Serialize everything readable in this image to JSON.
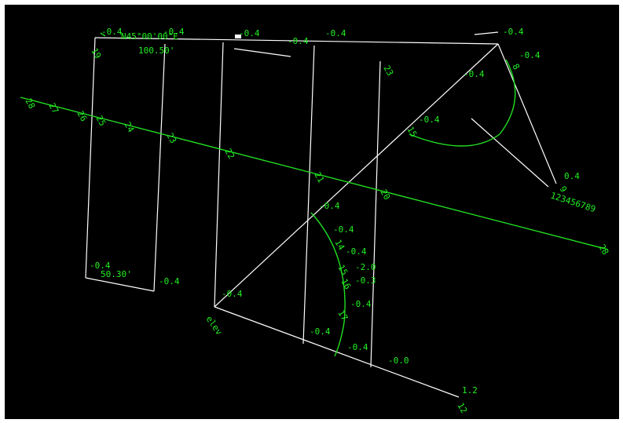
{
  "canvas": {
    "background": "#000000",
    "line_color": "#ffffff",
    "accent_color": "#22dd22"
  },
  "annotations": {
    "bearing": "N45°00'00\"E",
    "distance_top": "100.50'",
    "distance_bottom": "50.30'",
    "digit_string": "123456789",
    "origin_label": "elev",
    "end_value": "1.2",
    "end_index": "12",
    "zero_value": "-0.0",
    "label_23": "23",
    "label_28": "28"
  },
  "offset_labels": [
    "-0.4",
    "-0.4",
    "-0.4",
    "-0.4",
    "-0.4",
    "-0.4",
    "-0.4",
    "-0.4",
    "-0.4",
    "-0.4",
    "-0.4",
    "-0.4",
    "-0.4",
    "-0.4",
    "-0.4",
    "-0.4",
    "-0.4",
    "-0.4",
    "0.4",
    "-0.3",
    "-2.0"
  ],
  "axis_ticks": [
    "28",
    "27",
    "26",
    "25",
    "24",
    "23",
    "22",
    "21",
    "20",
    "19"
  ],
  "arc_ticks": [
    "14",
    "15",
    "16",
    "17"
  ],
  "upper_arc_ticks": [
    "9",
    "8",
    "15"
  ]
}
